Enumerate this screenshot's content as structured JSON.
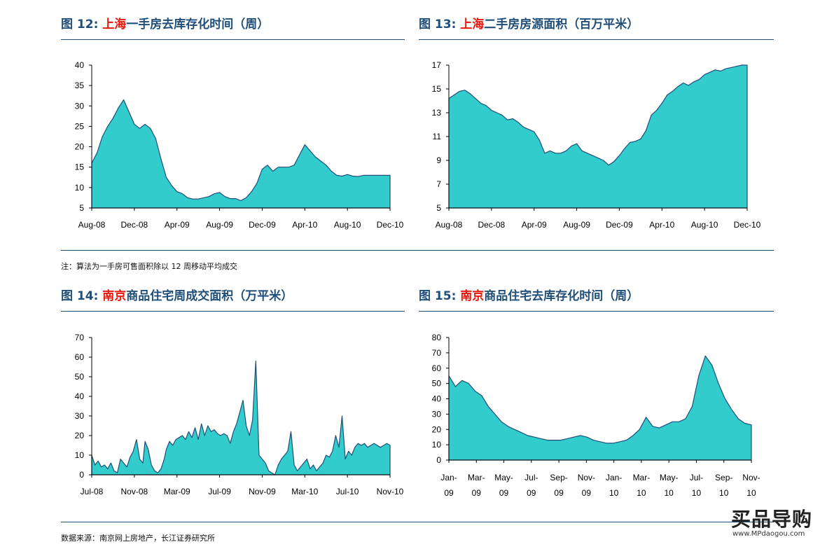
{
  "figures": [
    {
      "prefix": "图 12:",
      "highlight": "上海",
      "rest": "一手房去库存化时间（周）"
    },
    {
      "prefix": "图 13:",
      "highlight": "上海",
      "rest": "二手房房源面积（百万平米）"
    },
    {
      "prefix": "图 14:",
      "highlight": "南京",
      "rest": "商品住宅周成交面积（万平米）"
    },
    {
      "prefix": "图 15:",
      "highlight": "南京",
      "rest": "商品住宅去库存化时间（周）"
    }
  ],
  "note": "注：算法为一手房可售面积除以 12 周移动平均成交",
  "source": "数据来源：南京网上房地产，长江证券研究所",
  "watermark": {
    "main": "买品导购",
    "url": "www.MPdaogou.com"
  },
  "colors": {
    "fill": "#33cccc",
    "stroke": "#1f4e79",
    "accent": "#e8160c",
    "title": "#1f4e79"
  },
  "chart_data": [
    {
      "type": "area",
      "title": "图 12: 上海一手房去库存化时间（周）",
      "ylim": [
        5,
        40
      ],
      "yticks": [
        5,
        10,
        15,
        20,
        25,
        30,
        35,
        40
      ],
      "xticks": [
        "Aug-08",
        "Dec-08",
        "Apr-09",
        "Aug-09",
        "Dec-09",
        "Apr-10",
        "Aug-10",
        "Dec-10"
      ],
      "x_range": [
        0,
        28
      ],
      "x": [
        0,
        0.5,
        1,
        1.5,
        2,
        2.5,
        3,
        3.5,
        4,
        4.5,
        5,
        5.5,
        6,
        6.5,
        7,
        7.5,
        8,
        8.5,
        9,
        9.5,
        10,
        10.5,
        11,
        11.5,
        12,
        12.5,
        13,
        13.5,
        14,
        14.5,
        15,
        15.5,
        16,
        16.5,
        17,
        17.5,
        18,
        18.5,
        19,
        19.5,
        20,
        20.5,
        21,
        21.5,
        22,
        22.5,
        23,
        23.5,
        24,
        24.5,
        25,
        25.5,
        26,
        26.5,
        27,
        27.5,
        28
      ],
      "values": [
        16,
        18.5,
        22.5,
        25,
        27,
        29.5,
        31.5,
        28.5,
        25.5,
        24.5,
        25.5,
        24.5,
        22,
        17,
        12.5,
        10.5,
        9,
        8.5,
        7.5,
        7.2,
        7.2,
        7.5,
        7.8,
        8.5,
        8.8,
        7.8,
        7.3,
        7.3,
        6.8,
        7.5,
        9,
        11,
        14.5,
        15.5,
        14,
        15,
        15,
        15,
        15.5,
        18,
        20.5,
        19,
        17.5,
        16.5,
        15.5,
        14,
        13,
        12.8,
        13.2,
        12.8,
        12.7,
        13,
        13,
        13,
        13,
        13,
        13
      ]
    },
    {
      "type": "area",
      "title": "图 13: 上海二手房房源面积（百万平米）",
      "ylim": [
        5,
        17
      ],
      "yticks": [
        5,
        7,
        9,
        11,
        13,
        15,
        17
      ],
      "xticks": [
        "Aug-08",
        "Dec-08",
        "Apr-09",
        "Aug-09",
        "Dec-09",
        "Apr-10",
        "Aug-10",
        "Dec-10"
      ],
      "x_range": [
        0,
        28
      ],
      "x": [
        0,
        0.5,
        1,
        1.5,
        2,
        2.5,
        3,
        3.5,
        4,
        4.5,
        5,
        5.5,
        6,
        6.5,
        7,
        7.5,
        8,
        8.5,
        9,
        9.5,
        10,
        10.5,
        11,
        11.5,
        12,
        12.5,
        13,
        13.5,
        14,
        14.5,
        15,
        15.5,
        16,
        16.5,
        17,
        17.5,
        18,
        18.5,
        19,
        19.5,
        20,
        20.5,
        21,
        21.5,
        22,
        22.5,
        23,
        23.5,
        24,
        24.5,
        25,
        25.5,
        26,
        26.5,
        27,
        27.5,
        28
      ],
      "values": [
        14.2,
        14.5,
        14.8,
        14.9,
        14.6,
        14.2,
        13.8,
        13.6,
        13.2,
        13,
        12.8,
        12.4,
        12.5,
        12.2,
        11.8,
        11.6,
        11.4,
        10.7,
        9.6,
        9.8,
        9.6,
        9.6,
        9.8,
        10.2,
        10.4,
        9.8,
        9.6,
        9.4,
        9.2,
        9,
        8.6,
        8.9,
        9.4,
        10,
        10.5,
        10.6,
        10.8,
        11.5,
        12.8,
        13.2,
        13.8,
        14.5,
        14.8,
        15.2,
        15.5,
        15.3,
        15.6,
        15.8,
        16.2,
        16.4,
        16.6,
        16.5,
        16.7,
        16.8,
        16.9,
        17,
        17.1
      ]
    },
    {
      "type": "area",
      "title": "图 14: 南京商品住宅周成交面积（万平米）",
      "ylim": [
        0,
        70
      ],
      "yticks": [
        0,
        10,
        20,
        30,
        40,
        50,
        60,
        70
      ],
      "xticks": [
        "Jul-08",
        "Nov-08",
        "Mar-09",
        "Jul-09",
        "Nov-09",
        "Mar-10",
        "Jul-10",
        "Nov-10"
      ],
      "x_range": [
        0,
        28
      ],
      "x": [
        0,
        0.3,
        0.6,
        0.9,
        1.2,
        1.5,
        1.8,
        2.1,
        2.4,
        2.7,
        3,
        3.3,
        3.6,
        3.9,
        4.2,
        4.5,
        4.8,
        5,
        5.3,
        5.6,
        5.9,
        6.2,
        6.5,
        6.8,
        7,
        7.3,
        7.6,
        7.9,
        8.2,
        8.5,
        8.8,
        9.1,
        9.4,
        9.7,
        10,
        10.3,
        10.6,
        10.9,
        11.2,
        11.5,
        11.8,
        12.1,
        12.4,
        12.7,
        13,
        13.3,
        13.6,
        13.9,
        14.2,
        14.5,
        14.8,
        15.1,
        15.4,
        15.7,
        16,
        16.3,
        16.6,
        16.9,
        17.2,
        17.5,
        17.8,
        18.1,
        18.4,
        18.7,
        19,
        19.3,
        19.6,
        19.9,
        20.2,
        20.5,
        20.8,
        21.1,
        21.4,
        21.7,
        22,
        22.3,
        22.6,
        22.9,
        23.2,
        23.5,
        23.8,
        24.1,
        24.4,
        24.7,
        25,
        25.3,
        25.6,
        25.9,
        26.2,
        26.5,
        26.8,
        27.1,
        27.4,
        27.7,
        28
      ],
      "values": [
        10,
        5,
        7,
        4,
        5,
        3,
        6,
        2,
        1,
        8,
        6,
        4,
        9,
        12,
        18,
        8,
        6,
        17,
        13,
        5,
        2,
        1,
        3,
        8,
        13,
        17,
        15,
        18,
        19,
        20,
        18,
        22,
        19,
        24,
        18,
        26,
        20,
        25,
        22,
        23,
        21,
        20,
        21,
        20,
        16,
        22,
        26,
        32,
        38,
        25,
        20,
        28,
        58,
        10,
        8,
        6,
        2,
        1,
        0,
        5,
        8,
        10,
        12,
        22,
        5,
        2,
        4,
        6,
        8,
        3,
        5,
        2,
        4,
        6,
        10,
        9,
        12,
        20,
        14,
        30,
        8,
        12,
        10,
        14,
        16,
        15,
        16,
        14,
        15,
        16,
        15,
        14,
        15,
        16,
        15
      ]
    },
    {
      "type": "area",
      "title": "图 15: 南京商品住宅去库存化时间（周）",
      "ylim": [
        0,
        80
      ],
      "yticks": [
        0,
        10,
        20,
        30,
        40,
        50,
        60,
        70,
        80
      ],
      "xticks": [
        "Jan-09",
        "Mar-09",
        "May-09",
        "Jul-09",
        "Sep-09",
        "Nov-09",
        "Jan-10",
        "Mar-10",
        "May-10",
        "Jul-10",
        "Sep-10",
        "Nov-10"
      ],
      "x_range": [
        0,
        23
      ],
      "x": [
        0,
        0.5,
        1,
        1.5,
        2,
        2.5,
        3,
        3.5,
        4,
        4.5,
        5,
        5.5,
        6,
        6.5,
        7,
        7.5,
        8,
        8.5,
        9,
        9.5,
        10,
        10.5,
        11,
        11.5,
        12,
        12.5,
        13,
        13.5,
        14,
        14.5,
        15,
        15.5,
        16,
        16.5,
        17,
        17.5,
        18,
        18.5,
        19,
        19.5,
        20,
        20.5,
        21,
        21.5,
        22,
        22.5,
        23
      ],
      "values": [
        55,
        48,
        52,
        50,
        45,
        42,
        35,
        30,
        25,
        22,
        20,
        18,
        16,
        15,
        14,
        13,
        13,
        13,
        14,
        15,
        16,
        15,
        13,
        12,
        11,
        11,
        12,
        13,
        16,
        20,
        28,
        22,
        21,
        23,
        25,
        25,
        27,
        35,
        55,
        68,
        62,
        50,
        40,
        33,
        27,
        24,
        23
      ]
    }
  ]
}
